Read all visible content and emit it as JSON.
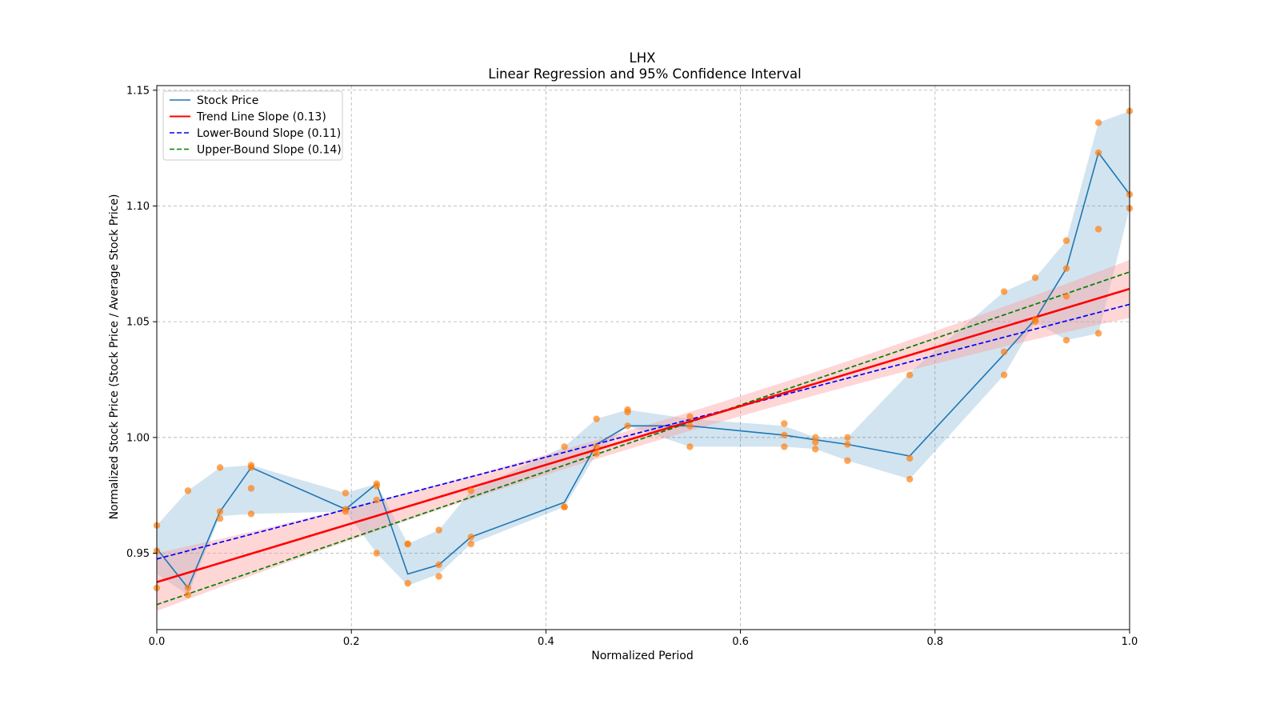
{
  "chart_data": {
    "type": "line",
    "title": "LHX",
    "subtitle": "Linear Regression and 95% Confidence Interval",
    "xlabel": "Normalized Period",
    "ylabel": "Normalized Stock Price (Stock Price / Average Stock Price)",
    "xlim": [
      0.0,
      1.0
    ],
    "ylim": [
      0.917,
      1.152
    ],
    "xticks": [
      0.0,
      0.2,
      0.4,
      0.6,
      0.8,
      1.0
    ],
    "xtick_labels": [
      "0.0",
      "0.2",
      "0.4",
      "0.6",
      "0.8",
      "1.0"
    ],
    "yticks": [
      0.95,
      1.0,
      1.05,
      1.1,
      1.15
    ],
    "ytick_labels": [
      "0.95",
      "1.00",
      "1.05",
      "1.10",
      "1.15"
    ],
    "grid": true,
    "legend_position": "top-left",
    "colors": {
      "stock": "#1f77b4",
      "band": "#1f77b4",
      "scatter": "#ff7f0e",
      "trend": "#ff0000",
      "trend_band": "#ff9999",
      "lower": "#0000ff",
      "upper": "#008000",
      "grid": "#b0b0b0"
    },
    "legend": [
      {
        "label": "Stock Price",
        "style": "solid",
        "color": "#1f77b4"
      },
      {
        "label": "Trend Line Slope (0.13)",
        "style": "solid",
        "color": "#ff0000"
      },
      {
        "label": "Lower-Bound Slope (0.11)",
        "style": "dashed",
        "color": "#0000ff"
      },
      {
        "label": "Upper-Bound Slope (0.14)",
        "style": "dashed",
        "color": "#008000"
      }
    ],
    "stock_price": {
      "name": "Stock Price",
      "x": [
        0.0,
        0.032,
        0.065,
        0.097,
        0.194,
        0.226,
        0.258,
        0.29,
        0.323,
        0.419,
        0.452,
        0.484,
        0.548,
        0.645,
        0.677,
        0.71,
        0.774,
        0.871,
        0.903,
        0.935,
        0.968,
        1.0
      ],
      "y": [
        0.952,
        0.935,
        0.968,
        0.987,
        0.969,
        0.98,
        0.941,
        0.945,
        0.957,
        0.972,
        0.997,
        1.005,
        1.005,
        1.001,
        0.999,
        0.997,
        0.992,
        1.036,
        1.051,
        1.073,
        1.123,
        1.105
      ],
      "band_lower": [
        0.941,
        0.932,
        0.966,
        0.967,
        0.968,
        0.95,
        0.936,
        0.941,
        0.954,
        0.97,
        0.993,
        1.005,
        0.996,
        0.996,
        0.995,
        0.99,
        0.982,
        1.027,
        1.05,
        1.042,
        1.045,
        1.099
      ],
      "band_upper": [
        0.962,
        0.977,
        0.987,
        0.988,
        0.976,
        0.98,
        0.954,
        0.96,
        0.977,
        0.996,
        1.008,
        1.012,
        1.008,
        1.005,
        1.0,
        1.0,
        1.028,
        1.063,
        1.069,
        1.085,
        1.136,
        1.141
      ]
    },
    "scatter": {
      "x": [
        0.0,
        0.0,
        0.0,
        0.032,
        0.032,
        0.032,
        0.065,
        0.065,
        0.065,
        0.097,
        0.097,
        0.097,
        0.097,
        0.194,
        0.194,
        0.194,
        0.226,
        0.226,
        0.226,
        0.226,
        0.258,
        0.258,
        0.258,
        0.29,
        0.29,
        0.29,
        0.323,
        0.323,
        0.323,
        0.419,
        0.419,
        0.419,
        0.452,
        0.452,
        0.452,
        0.484,
        0.484,
        0.484,
        0.548,
        0.548,
        0.548,
        0.645,
        0.645,
        0.645,
        0.677,
        0.677,
        0.677,
        0.71,
        0.71,
        0.71,
        0.774,
        0.774,
        0.774,
        0.871,
        0.871,
        0.871,
        0.903,
        0.903,
        0.903,
        0.935,
        0.935,
        0.935,
        0.935,
        0.968,
        0.968,
        0.968,
        0.968,
        1.0,
        1.0,
        1.0
      ],
      "y": [
        0.962,
        0.951,
        0.935,
        0.977,
        0.935,
        0.932,
        0.987,
        0.968,
        0.965,
        0.988,
        0.978,
        0.967,
        0.987,
        0.976,
        0.969,
        0.968,
        0.98,
        0.979,
        0.973,
        0.95,
        0.954,
        0.954,
        0.937,
        0.96,
        0.945,
        0.94,
        0.977,
        0.957,
        0.954,
        0.996,
        0.97,
        0.97,
        1.008,
        0.996,
        0.993,
        1.012,
        1.011,
        1.005,
        1.009,
        1.005,
        0.996,
        1.006,
        1.001,
        0.996,
        1.0,
        0.998,
        0.995,
        1.0,
        0.997,
        0.99,
        1.027,
        0.991,
        0.982,
        1.063,
        1.037,
        1.027,
        1.069,
        1.051,
        1.05,
        1.085,
        1.073,
        1.061,
        1.042,
        1.136,
        1.123,
        1.09,
        1.045,
        1.141,
        1.105,
        1.099
      ]
    },
    "trend_line": {
      "name": "Trend Line Slope (0.13)",
      "intercept": 0.9375,
      "slope": 0.1267,
      "ci_halfwidth_edge": 0.0125,
      "ci_halfwidth_center": 0.004
    },
    "lower_bound": {
      "name": "Lower-Bound Slope (0.11)",
      "intercept": 0.9475,
      "slope": 0.11
    },
    "upper_bound": {
      "name": "Upper-Bound Slope (0.14)",
      "intercept": 0.9278,
      "slope": 0.1437
    }
  }
}
